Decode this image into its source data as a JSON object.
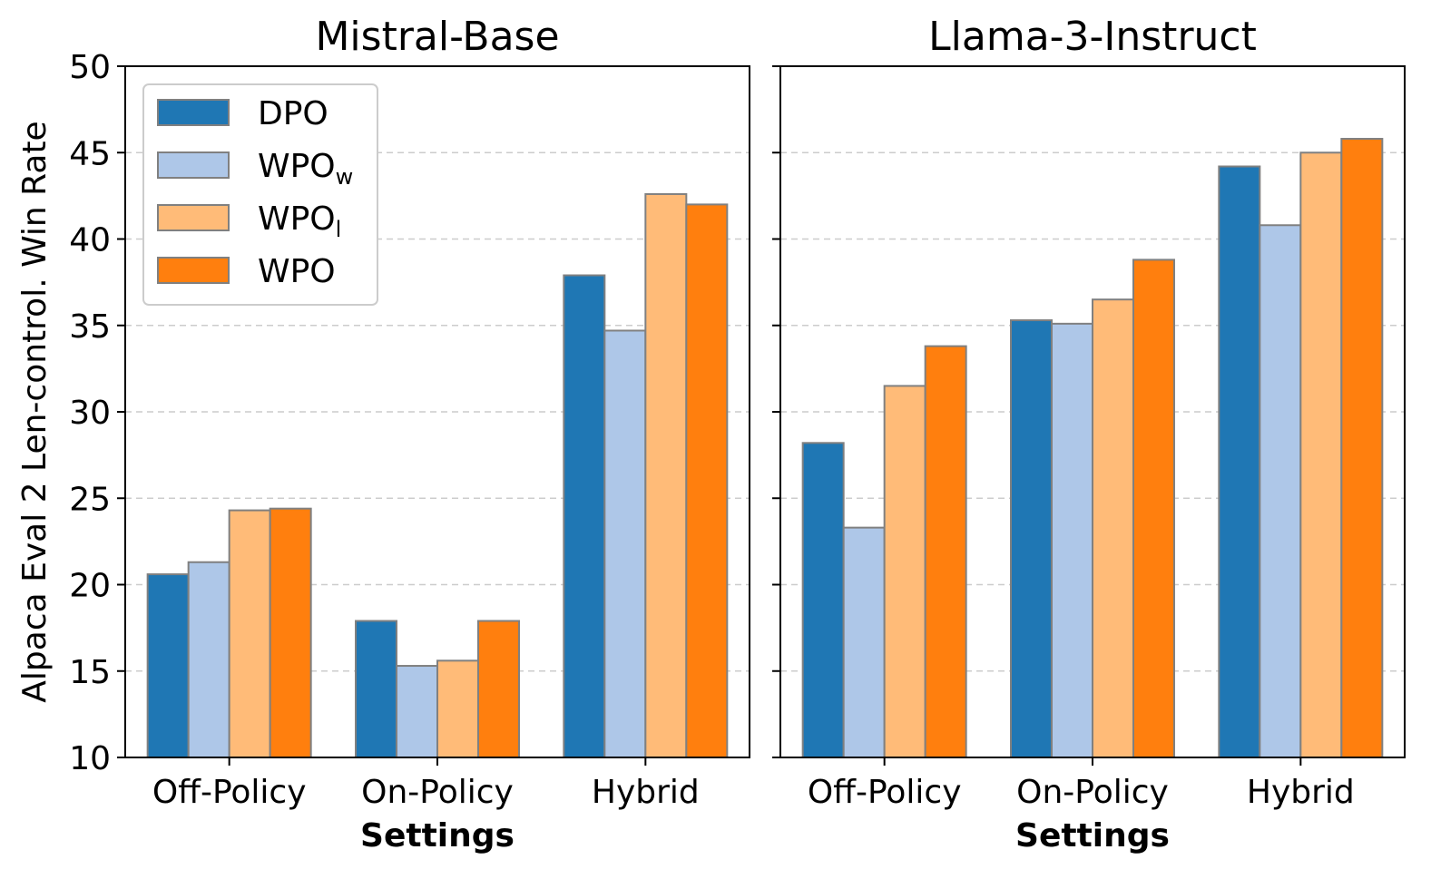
{
  "chart_data": [
    {
      "type": "bar",
      "title": "Mistral-Base",
      "xlabel": "Settings",
      "ylabel": "Alpaca Eval 2 Len-control. Win Rate",
      "categories": [
        "Off-Policy",
        "On-Policy",
        "Hybrid"
      ],
      "ylim": [
        10,
        50
      ],
      "yticks": [
        "10",
        "15",
        "20",
        "25",
        "30",
        "35",
        "40",
        "45",
        "50"
      ],
      "grid": "horizontal dashed",
      "legend": "top-left",
      "series": [
        {
          "name": "DPO",
          "values": [
            20.6,
            17.9,
            37.9
          ]
        },
        {
          "name": "WPOw",
          "values": [
            21.3,
            15.3,
            34.7
          ]
        },
        {
          "name": "WPOl",
          "values": [
            24.3,
            15.6,
            42.6
          ]
        },
        {
          "name": "WPO",
          "values": [
            24.4,
            17.9,
            42.0
          ]
        }
      ]
    },
    {
      "type": "bar",
      "title": "Llama-3-Instruct",
      "xlabel": "Settings",
      "categories": [
        "Off-Policy",
        "On-Policy",
        "Hybrid"
      ],
      "ylim": [
        10,
        50
      ],
      "grid": "horizontal dashed",
      "series": [
        {
          "name": "DPO",
          "values": [
            28.2,
            35.3,
            44.2
          ]
        },
        {
          "name": "WPOw",
          "values": [
            23.3,
            35.1,
            40.8
          ]
        },
        {
          "name": "WPOl",
          "values": [
            31.5,
            36.5,
            45.0
          ]
        },
        {
          "name": "WPO",
          "values": [
            33.8,
            38.8,
            45.8
          ]
        }
      ]
    }
  ],
  "legend": [
    {
      "base": "WPO",
      "sub": "",
      "text": "DPO",
      "color": "#1f77b4"
    },
    {
      "base": "WPO",
      "sub": "w",
      "color": "#aec7e8"
    },
    {
      "base": "WPO",
      "sub": "l",
      "color": "#ffbb78"
    },
    {
      "base": "WPO",
      "sub": "",
      "color": "#ff7f0e"
    }
  ],
  "colors": [
    "#1f77b4",
    "#aec7e8",
    "#ffbb78",
    "#ff7f0e"
  ],
  "bar_edge_color": "#808080",
  "grid_color": "#cccccc"
}
